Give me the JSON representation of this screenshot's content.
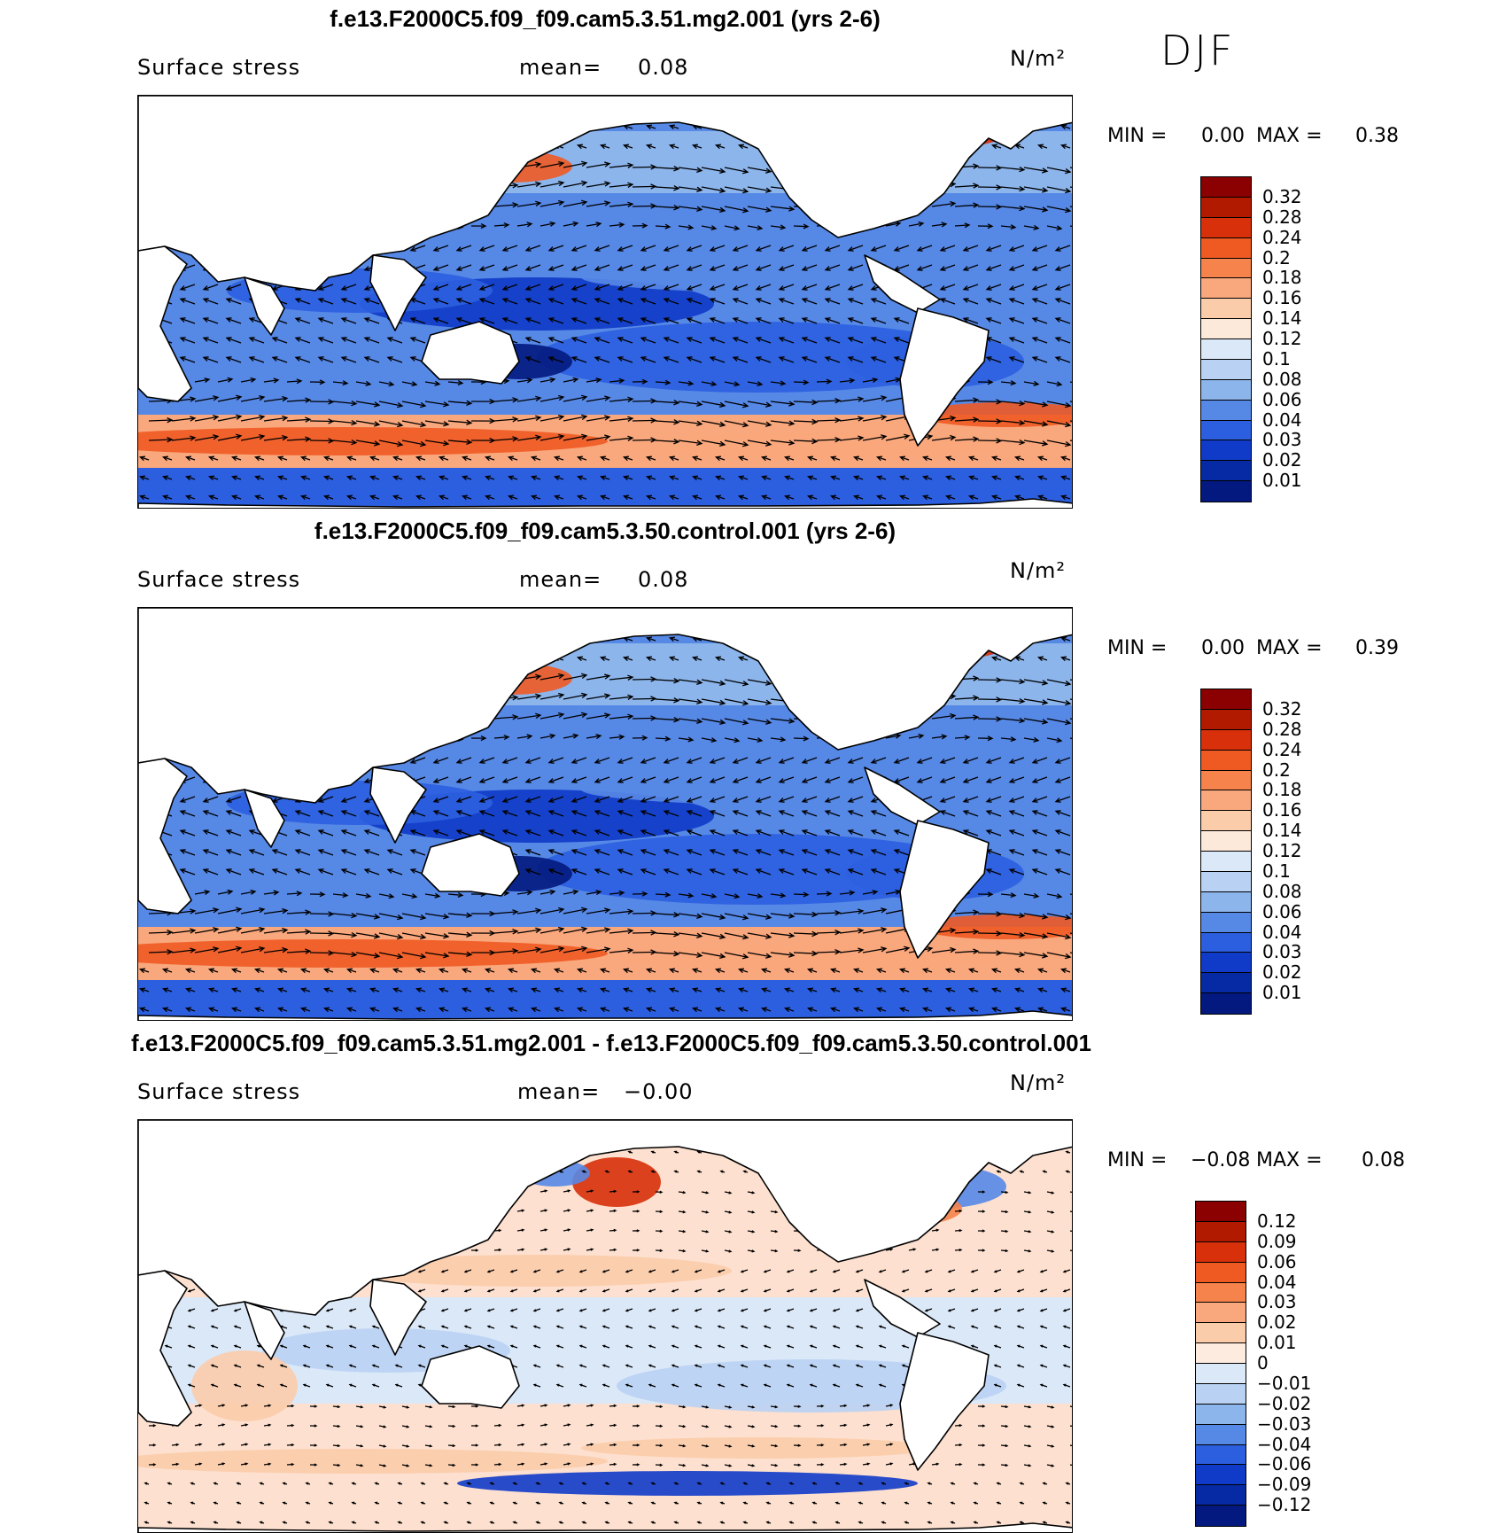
{
  "season": "DJF",
  "panels": [
    {
      "title": "f.e13.F2000C5.f09_f09.cam5.3.51.mg2.001 (yrs 2-6)",
      "variable": "Surface stress",
      "mean_label": "mean=",
      "mean_value": "0.08",
      "units": "N/m²",
      "min_label": "MIN =",
      "min_value": "0.00",
      "max_label": "MAX =",
      "max_value": "0.38",
      "colorbar_ticks": [
        "0.32",
        "0.28",
        "0.24",
        "0.2",
        "0.18",
        "0.16",
        "0.14",
        "0.12",
        "0.1",
        "0.08",
        "0.06",
        "0.04",
        "0.03",
        "0.02",
        "0.01"
      ],
      "colorbar_colors": [
        "#8b0000",
        "#b21a00",
        "#d8300a",
        "#ef5a23",
        "#f6834b",
        "#f9a77c",
        "#fbccaa",
        "#fde9da",
        "#dbe8f8",
        "#b9d2f3",
        "#8cb5ec",
        "#5688e6",
        "#2c5fe0",
        "#0f3bc8",
        "#062aa3",
        "#031980"
      ],
      "field": "abs"
    },
    {
      "title": "f.e13.F2000C5.f09_f09.cam5.3.50.control.001 (yrs 2-6)",
      "variable": "Surface stress",
      "mean_label": "mean=",
      "mean_value": "0.08",
      "units": "N/m²",
      "min_label": "MIN =",
      "min_value": "0.00",
      "max_label": "MAX =",
      "max_value": "0.39",
      "colorbar_ticks": [
        "0.32",
        "0.28",
        "0.24",
        "0.2",
        "0.18",
        "0.16",
        "0.14",
        "0.12",
        "0.1",
        "0.08",
        "0.06",
        "0.04",
        "0.03",
        "0.02",
        "0.01"
      ],
      "colorbar_colors": [
        "#8b0000",
        "#b21a00",
        "#d8300a",
        "#ef5a23",
        "#f6834b",
        "#f9a77c",
        "#fbccaa",
        "#fde9da",
        "#dbe8f8",
        "#b9d2f3",
        "#8cb5ec",
        "#5688e6",
        "#2c5fe0",
        "#0f3bc8",
        "#062aa3",
        "#031980"
      ],
      "field": "abs"
    },
    {
      "title": "f.e13.F2000C5.f09_f09.cam5.3.51.mg2.001 - f.e13.F2000C5.f09_f09.cam5.3.50.control.001",
      "variable": "Surface stress",
      "mean_label": "mean=",
      "mean_value": "−0.00",
      "units": "N/m²",
      "min_label": "MIN =",
      "min_value": "−0.08",
      "max_label": "MAX =",
      "max_value": "0.08",
      "colorbar_ticks": [
        "0.12",
        "0.09",
        "0.06",
        "0.04",
        "0.03",
        "0.02",
        "0.01",
        "0",
        "−0.01",
        "−0.02",
        "−0.03",
        "−0.04",
        "−0.06",
        "−0.09",
        "−0.12"
      ],
      "colorbar_colors": [
        "#8b0000",
        "#b21a00",
        "#d8300a",
        "#ef5a23",
        "#f6834b",
        "#f9a77c",
        "#fbccaa",
        "#fdebe0",
        "#dbe8f8",
        "#b9d2f3",
        "#8cb5ec",
        "#5688e6",
        "#2c5fe0",
        "#0f3bc8",
        "#062aa3",
        "#031980"
      ],
      "field": "diff"
    }
  ],
  "colors": {
    "land": "#ffffff",
    "coast": "#000000",
    "arrow": "#000000"
  }
}
